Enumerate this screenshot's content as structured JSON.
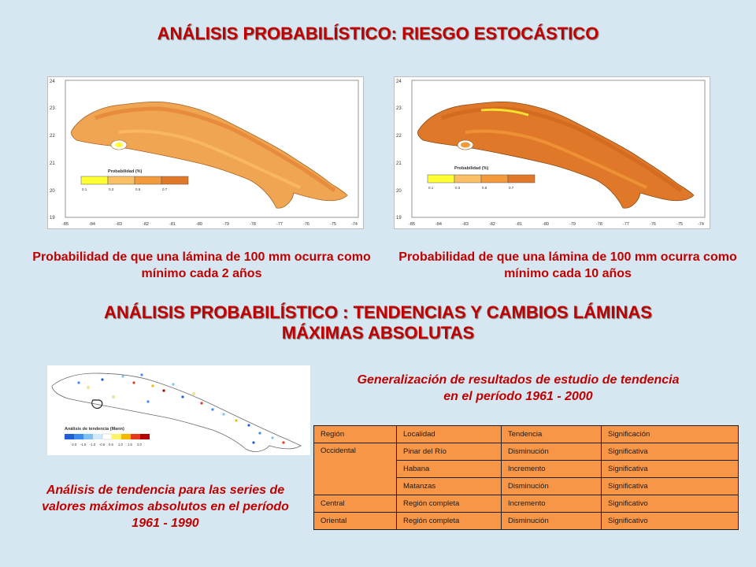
{
  "section1": {
    "title": "ANÁLISIS PROBABILÍSTICO: RIESGO ESTOCÁSTICO"
  },
  "map_left": {
    "legend_title": "Probabilidad (%)",
    "legend_ticks": [
      "0.1",
      "0.3",
      "0.5",
      "0.7"
    ],
    "legend_colors": [
      "#ffff33",
      "#fbbf66",
      "#f39a3c",
      "#e0782a"
    ],
    "y_ticks": [
      "24",
      "23",
      "22",
      "21",
      "20",
      "19"
    ],
    "x_ticks": [
      "-85",
      "-84",
      "-83",
      "-82",
      "-81",
      "-80",
      "-79",
      "-78",
      "-77",
      "-76",
      "-75",
      "-74"
    ],
    "caption": "Probabilidad de que una lámina de 100 mm ocurra como mínimo cada 2 años"
  },
  "map_right": {
    "legend_title": "Probabilidad (%)",
    "legend_ticks": [
      "0.1",
      "0.3",
      "0.5",
      "0.7"
    ],
    "legend_colors": [
      "#ffff33",
      "#fbbf66",
      "#f39a3c",
      "#e0782a"
    ],
    "y_ticks": [
      "24",
      "23",
      "22",
      "21",
      "20",
      "19"
    ],
    "x_ticks": [
      "-85",
      "-84",
      "-83",
      "-82",
      "-81",
      "-80",
      "-79",
      "-78",
      "-77",
      "-76",
      "-75",
      "-74"
    ],
    "caption": "Probabilidad de que una lámina de 100 mm ocurra como mínimo cada 10 años"
  },
  "section2": {
    "title_line1": "ANÁLISIS PROBABILÍSTICO : TENDENCIAS Y CAMBIOS LÁMINAS",
    "title_line2": "MÁXIMAS ABSOLUTAS"
  },
  "trend_map": {
    "legend_title": "Análisis de tendencia (Mann)",
    "legend_ticks": [
      "-2.0",
      "-1.5",
      "-1.0",
      "-0.5",
      "0.5",
      "1.0",
      "1.5",
      "2.0"
    ],
    "legend_colors": [
      "#1f5fd6",
      "#3d8df0",
      "#7fc0f5",
      "#cfe9fb",
      "#ffffff",
      "#fff36b",
      "#f5b800",
      "#e53b1c",
      "#b40000"
    ],
    "caption": "Análisis de tendencia para las series de valores máximos absolutos en el período 1961 - 1990"
  },
  "generalization": {
    "caption": "Generalización de resultados de estudio de tendencia en el período 1961 - 2000"
  },
  "results_table": {
    "headers": [
      "Región",
      "Localidad",
      "Tendencia",
      "Significación"
    ],
    "rows": [
      [
        "Occidental",
        "Pinar del Río",
        "Disminución",
        "Significativa"
      ],
      [
        "",
        "Habana",
        "Incremento",
        "Significativa"
      ],
      [
        "",
        "Matanzas",
        "Disminución",
        "Significativa"
      ],
      [
        "Central",
        "Región completa",
        "Incremento",
        "Significativo"
      ],
      [
        "Oriental",
        "Región completa",
        "Disminución",
        "Significativo"
      ]
    ]
  }
}
